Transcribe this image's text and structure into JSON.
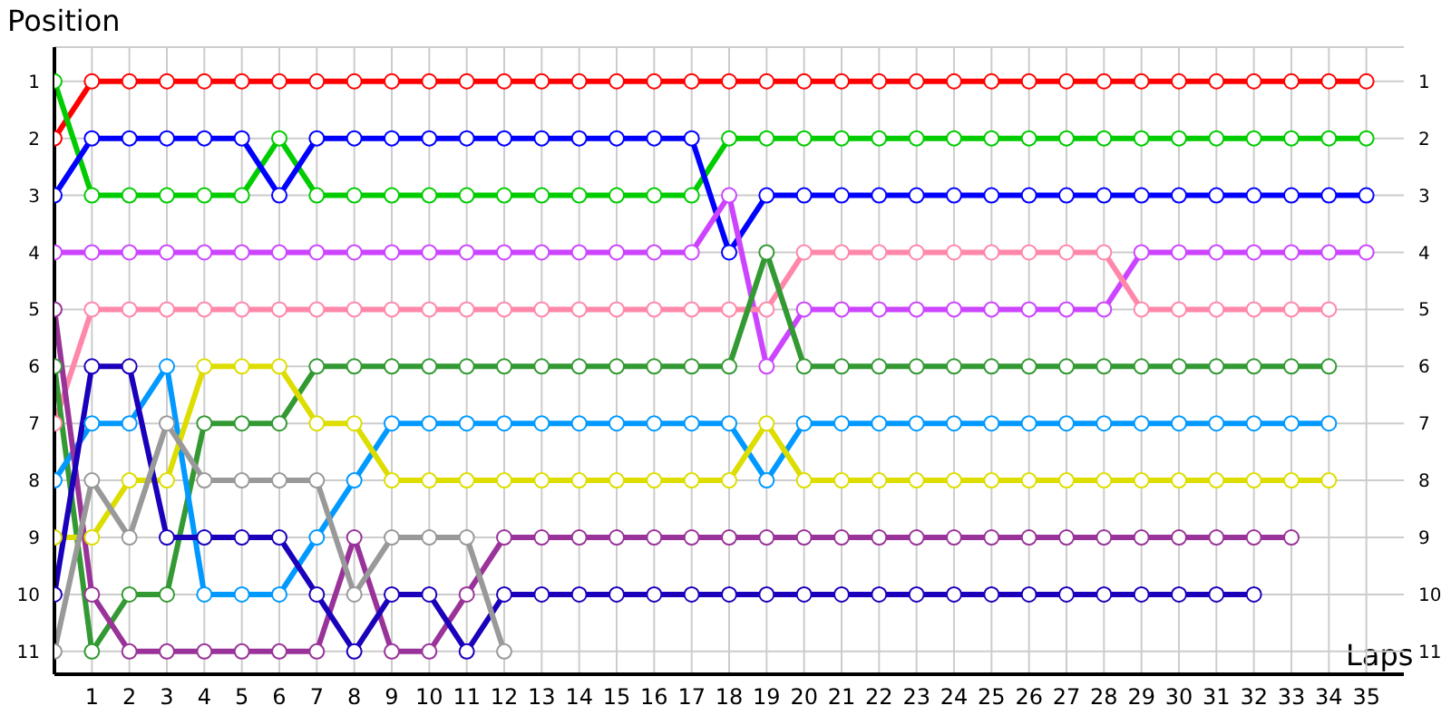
{
  "chart_data": {
    "type": "line",
    "xlabel": "Laps",
    "ylabel": "Position",
    "x": [
      0,
      1,
      2,
      3,
      4,
      5,
      6,
      7,
      8,
      9,
      10,
      11,
      12,
      13,
      14,
      15,
      16,
      17,
      18,
      19,
      20,
      21,
      22,
      23,
      24,
      25,
      26,
      27,
      28,
      29,
      30,
      31,
      32,
      33,
      34,
      35
    ],
    "xlim": [
      0,
      36
    ],
    "xticks": [
      {
        "value": 0,
        "label": null
      },
      1,
      2,
      3,
      4,
      5,
      6,
      7,
      8,
      9,
      10,
      11,
      12,
      13,
      14,
      15,
      16,
      17,
      18,
      19,
      20,
      21,
      22,
      23,
      24,
      25,
      26,
      27,
      28,
      29,
      30,
      31,
      32,
      33,
      34,
      35
    ],
    "ylim": [
      11.4,
      0.4
    ],
    "yticks": [
      1,
      2,
      3,
      4,
      5,
      6,
      7,
      8,
      9,
      10,
      11
    ],
    "y2lim": [
      11.4,
      0.4
    ],
    "y2ticks": [
      1,
      2,
      3,
      4,
      5,
      6,
      7,
      8,
      9,
      10,
      11
    ],
    "grid": true,
    "marker": "circle",
    "line_style": "solid",
    "series": [
      {
        "color": "#ff0000",
        "values": [
          2,
          1,
          1,
          1,
          1,
          1,
          1,
          1,
          1,
          1,
          1,
          1,
          1,
          1,
          1,
          1,
          1,
          1,
          1,
          1,
          1,
          1,
          1,
          1,
          1,
          1,
          1,
          1,
          1,
          1,
          1,
          1,
          1,
          1,
          1,
          1
        ]
      },
      {
        "color": "#00cc00",
        "values": [
          1,
          3,
          3,
          3,
          3,
          3,
          2,
          3,
          3,
          3,
          3,
          3,
          3,
          3,
          3,
          3,
          3,
          3,
          2,
          2,
          2,
          2,
          2,
          2,
          2,
          2,
          2,
          2,
          2,
          2,
          2,
          2,
          2,
          2,
          2,
          2
        ]
      },
      {
        "color": "#0000ff",
        "values": [
          3,
          2,
          2,
          2,
          2,
          2,
          3,
          2,
          2,
          2,
          2,
          2,
          2,
          2,
          2,
          2,
          2,
          2,
          4,
          3,
          3,
          3,
          3,
          3,
          3,
          3,
          3,
          3,
          3,
          3,
          3,
          3,
          3,
          3,
          3,
          3
        ]
      },
      {
        "color": "#cc44ff",
        "values": [
          4,
          4,
          4,
          4,
          4,
          4,
          4,
          4,
          4,
          4,
          4,
          4,
          4,
          4,
          4,
          4,
          4,
          4,
          3,
          6,
          5,
          5,
          5,
          5,
          5,
          5,
          5,
          5,
          5,
          4,
          4,
          4,
          4,
          4,
          4,
          4
        ]
      },
      {
        "color": "#ff88aa",
        "values": [
          7,
          5,
          5,
          5,
          5,
          5,
          5,
          5,
          5,
          5,
          5,
          5,
          5,
          5,
          5,
          5,
          5,
          5,
          5,
          5,
          4,
          4,
          4,
          4,
          4,
          4,
          4,
          4,
          4,
          5,
          5,
          5,
          5,
          5,
          5,
          null
        ]
      },
      {
        "color": "#339933",
        "values": [
          6,
          11,
          10,
          10,
          7,
          7,
          7,
          6,
          6,
          6,
          6,
          6,
          6,
          6,
          6,
          6,
          6,
          6,
          6,
          4,
          6,
          6,
          6,
          6,
          6,
          6,
          6,
          6,
          6,
          6,
          6,
          6,
          6,
          6,
          6,
          null
        ]
      },
      {
        "color": "#0099ff",
        "values": [
          8,
          7,
          7,
          6,
          10,
          10,
          10,
          9,
          8,
          7,
          7,
          7,
          7,
          7,
          7,
          7,
          7,
          7,
          7,
          8,
          7,
          7,
          7,
          7,
          7,
          7,
          7,
          7,
          7,
          7,
          7,
          7,
          7,
          7,
          7,
          null
        ]
      },
      {
        "color": "#dddd00",
        "values": [
          9,
          9,
          8,
          8,
          6,
          6,
          6,
          7,
          7,
          8,
          8,
          8,
          8,
          8,
          8,
          8,
          8,
          8,
          8,
          7,
          8,
          8,
          8,
          8,
          8,
          8,
          8,
          8,
          8,
          8,
          8,
          8,
          8,
          8,
          8,
          null
        ]
      },
      {
        "color": "#993399",
        "values": [
          5,
          10,
          11,
          11,
          11,
          11,
          11,
          11,
          9,
          11,
          11,
          10,
          9,
          9,
          9,
          9,
          9,
          9,
          9,
          9,
          9,
          9,
          9,
          9,
          9,
          9,
          9,
          9,
          9,
          9,
          9,
          9,
          9,
          9,
          null,
          null
        ]
      },
      {
        "color": "#1a00bb",
        "values": [
          10,
          6,
          6,
          9,
          9,
          9,
          9,
          10,
          11,
          10,
          10,
          11,
          10,
          10,
          10,
          10,
          10,
          10,
          10,
          10,
          10,
          10,
          10,
          10,
          10,
          10,
          10,
          10,
          10,
          10,
          10,
          10,
          10,
          null,
          null,
          null
        ]
      },
      {
        "color": "#999999",
        "values": [
          11,
          8,
          9,
          7,
          8,
          8,
          8,
          8,
          10,
          9,
          9,
          9,
          11,
          null,
          null,
          null,
          null,
          null,
          null,
          null,
          null,
          null,
          null,
          null,
          null,
          null,
          null,
          null,
          null,
          null,
          null,
          null,
          null,
          null,
          null,
          null
        ]
      }
    ]
  }
}
